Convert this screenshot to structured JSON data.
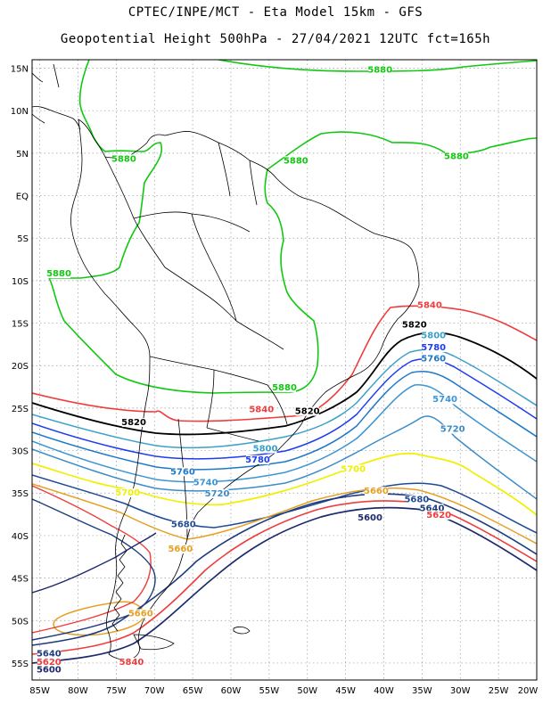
{
  "header": {
    "title_line1": "CPTEC/INPE/MCT -  Eta Model 15km - GFS",
    "title_line2": "Geopotential Height 500hPa - 27/04/2021 12UTC fct=165h"
  },
  "map": {
    "lon_range": [
      -86,
      -20
    ],
    "lat_range": [
      -57,
      16
    ],
    "lat_labels": [
      "15N",
      "10N",
      "5N",
      "EQ",
      "5S",
      "10S",
      "15S",
      "20S",
      "25S",
      "30S",
      "35S",
      "40S",
      "45S",
      "50S",
      "55S"
    ],
    "lon_labels": [
      "85W",
      "80W",
      "75W",
      "70W",
      "65W",
      "60W",
      "55W",
      "50W",
      "45W",
      "40W",
      "35W",
      "30W",
      "25W",
      "20W"
    ],
    "coastline_color": "#000000",
    "grid": "dotted"
  },
  "contours": [
    {
      "level": "5880",
      "color": "#10c810",
      "labels": [
        [
          -40.5,
          14.5
        ],
        [
          -74,
          4.0
        ],
        [
          -51.5,
          3.8
        ],
        [
          -30.5,
          4.3
        ],
        [
          -82.5,
          -9.5
        ],
        [
          -53,
          -22.9
        ]
      ]
    },
    {
      "level": "5840",
      "color": "#f03c3c",
      "labels": [
        [
          -34,
          -13.2
        ],
        [
          -56,
          -25.5
        ],
        [
          -73,
          -55.2
        ]
      ]
    },
    {
      "level": "5820",
      "color": "#000000",
      "labels": [
        [
          -36,
          -15.5
        ],
        [
          -50,
          -25.7
        ],
        [
          -72.7,
          -27
        ]
      ]
    },
    {
      "level": "5800",
      "color": "#3ca0c8",
      "labels": [
        [
          -33.5,
          -16.8
        ],
        [
          -55.5,
          -30.1
        ]
      ]
    },
    {
      "level": "5780",
      "color": "#1e3cf0",
      "labels": [
        [
          -33.5,
          -18.2
        ],
        [
          -56.5,
          -31.4
        ]
      ]
    },
    {
      "level": "5760",
      "color": "#1e78c8",
      "labels": [
        [
          -33.5,
          -19.5
        ],
        [
          -66.3,
          -32.8
        ]
      ]
    },
    {
      "level": "5740",
      "color": "#3c96d2",
      "labels": [
        [
          -32,
          -24.3
        ],
        [
          -63.3,
          -34.1
        ]
      ]
    },
    {
      "level": "5720",
      "color": "#3c8cc8",
      "labels": [
        [
          -31,
          -27.8
        ],
        [
          -61.8,
          -35.4
        ]
      ]
    },
    {
      "level": "5700",
      "color": "#f0f000",
      "labels": [
        [
          -44,
          -32.5
        ],
        [
          -73.5,
          -35.3
        ]
      ]
    },
    {
      "level": "5680",
      "color": "#1e4a96",
      "labels": [
        [
          -35.7,
          -36.1
        ],
        [
          -66.2,
          -39
        ]
      ]
    },
    {
      "level": "5660",
      "color": "#e6a020",
      "labels": [
        [
          -41,
          -35.1
        ],
        [
          -66.6,
          -41.9
        ],
        [
          -71.8,
          -49.5
        ]
      ]
    },
    {
      "level": "5640",
      "color": "#1e3c7d",
      "labels": [
        [
          -33.7,
          -37.1
        ],
        [
          -83.8,
          -54.2
        ]
      ]
    },
    {
      "level": "5620",
      "color": "#f03c3c",
      "labels": [
        [
          -32.8,
          -37.9
        ],
        [
          -83.8,
          -55.2
        ]
      ]
    },
    {
      "level": "5600",
      "color": "#1e2a6e",
      "labels": [
        [
          -41.8,
          -38.2
        ],
        [
          -83.8,
          -56.1
        ]
      ]
    }
  ]
}
